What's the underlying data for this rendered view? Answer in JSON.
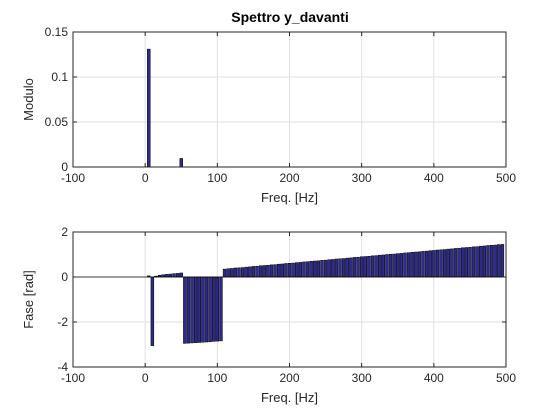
{
  "chart_data": [
    {
      "type": "bar",
      "title": "Spettro y_davanti",
      "xlabel": "Freq. [Hz]",
      "ylabel": "Modulo",
      "xlim": [
        -100,
        500
      ],
      "ylim": [
        0,
        0.15
      ],
      "xticks": [
        -100,
        0,
        100,
        200,
        300,
        400,
        500
      ],
      "xtick_labels": [
        "-100",
        "0",
        "100",
        "200",
        "300",
        "400",
        "500"
      ],
      "yticks": [
        0,
        0.05,
        0.1,
        0.15
      ],
      "ytick_labels": [
        "0",
        "0.05",
        "0.1",
        "0.15"
      ],
      "grid": true,
      "bar_color": "#2e2a8f",
      "x": [
        5,
        50
      ],
      "values": [
        0.131,
        0.0095
      ]
    },
    {
      "type": "bar",
      "title": "",
      "xlabel": "Freq. [Hz]",
      "ylabel": "Fase [rad]",
      "xlim": [
        -100,
        500
      ],
      "ylim": [
        -4,
        2
      ],
      "xticks": [
        -100,
        0,
        100,
        200,
        300,
        400,
        500
      ],
      "xtick_labels": [
        "-100",
        "0",
        "100",
        "200",
        "300",
        "400",
        "500"
      ],
      "yticks": [
        -4,
        -2,
        0,
        2
      ],
      "ytick_labels": [
        "-4",
        "-2",
        "0",
        "2"
      ],
      "grid": true,
      "bar_color": "#2e2a8f",
      "x": [
        5,
        10,
        15,
        20,
        25,
        30,
        35,
        40,
        45,
        50,
        55,
        60,
        65,
        70,
        75,
        80,
        85,
        90,
        95,
        100,
        105,
        110,
        115,
        120,
        125,
        130,
        135,
        140,
        145,
        150,
        155,
        160,
        165,
        170,
        175,
        180,
        185,
        190,
        195,
        200,
        205,
        210,
        215,
        220,
        225,
        230,
        235,
        240,
        245,
        250,
        255,
        260,
        265,
        270,
        275,
        280,
        285,
        290,
        295,
        300,
        305,
        310,
        315,
        320,
        325,
        330,
        335,
        340,
        345,
        350,
        355,
        360,
        365,
        370,
        375,
        380,
        385,
        390,
        395,
        400,
        405,
        410,
        415,
        420,
        425,
        430,
        435,
        440,
        445,
        450,
        455,
        460,
        465,
        470,
        475,
        480,
        485,
        490,
        495
      ],
      "values": [
        0.05,
        -3.05,
        0.04,
        0.08,
        0.1,
        0.12,
        0.13,
        0.15,
        0.16,
        0.18,
        -2.95,
        -2.94,
        -2.93,
        -2.92,
        -2.91,
        -2.9,
        -2.89,
        -2.88,
        -2.86,
        -2.85,
        -2.84,
        0.35,
        0.37,
        0.38,
        0.4,
        0.41,
        0.42,
        0.44,
        0.45,
        0.47,
        0.48,
        0.5,
        0.51,
        0.52,
        0.54,
        0.55,
        0.57,
        0.58,
        0.6,
        0.61,
        0.62,
        0.64,
        0.65,
        0.67,
        0.68,
        0.7,
        0.71,
        0.72,
        0.74,
        0.75,
        0.77,
        0.78,
        0.8,
        0.81,
        0.82,
        0.84,
        0.85,
        0.87,
        0.88,
        0.9,
        0.91,
        0.92,
        0.94,
        0.95,
        0.97,
        0.98,
        1.0,
        1.01,
        1.02,
        1.04,
        1.05,
        1.07,
        1.08,
        1.1,
        1.11,
        1.12,
        1.14,
        1.15,
        1.17,
        1.18,
        1.2,
        1.21,
        1.22,
        1.24,
        1.25,
        1.27,
        1.28,
        1.3,
        1.31,
        1.32,
        1.34,
        1.35,
        1.37,
        1.38,
        1.4,
        1.41,
        1.42,
        1.44,
        1.45
      ]
    }
  ]
}
